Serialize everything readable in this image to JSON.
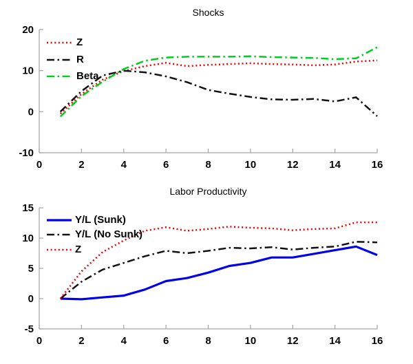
{
  "figure": {
    "background": "#ffffff",
    "axis_color": "#a9a9a9",
    "text_color": "#000000"
  },
  "chart_data": [
    {
      "id": "shocks",
      "type": "line",
      "title": "Shocks",
      "xlabel": "",
      "ylabel": "",
      "xlim": [
        0,
        16
      ],
      "ylim": [
        -10,
        20
      ],
      "xticks": [
        0,
        2,
        4,
        6,
        8,
        10,
        12,
        14,
        16
      ],
      "yticks": [
        -10,
        0,
        10,
        20
      ],
      "grid": false,
      "legend_position": "top-left",
      "x": [
        1,
        2,
        3,
        4,
        5,
        6,
        7,
        8,
        9,
        10,
        11,
        12,
        13,
        14,
        15,
        16
      ],
      "series": [
        {
          "name": "Z",
          "color": "#ee0000",
          "style": "dotted",
          "values": [
            -0.5,
            4.3,
            7.8,
            9.9,
            11.1,
            11.9,
            11.1,
            11.4,
            11.6,
            11.8,
            11.6,
            11.5,
            11.3,
            11.5,
            12.2,
            12.5
          ]
        },
        {
          "name": "R",
          "color": "#111111",
          "style": "dashdot",
          "values": [
            0,
            5.0,
            8.8,
            10.0,
            9.6,
            8.6,
            7.2,
            5.3,
            4.4,
            3.6,
            3.0,
            2.9,
            3.1,
            2.5,
            3.5,
            -1.1
          ]
        },
        {
          "name": "Beta",
          "color": "#00cc22",
          "style": "dashdot",
          "values": [
            -1.2,
            3.8,
            7.3,
            10.4,
            12.4,
            13.2,
            13.4,
            13.4,
            13.4,
            13.5,
            13.3,
            13.2,
            13.1,
            12.8,
            13.0,
            15.7
          ]
        }
      ]
    },
    {
      "id": "labor-productivity",
      "type": "line",
      "title": "Labor Productivity",
      "xlabel": "",
      "ylabel": "",
      "xlim": [
        0,
        16
      ],
      "ylim": [
        -5,
        15
      ],
      "xticks": [
        0,
        2,
        4,
        6,
        8,
        10,
        12,
        14,
        16
      ],
      "yticks": [
        -5,
        0,
        5,
        10,
        15
      ],
      "grid": false,
      "legend_position": "top-left",
      "x": [
        1,
        2,
        3,
        4,
        5,
        6,
        7,
        8,
        9,
        10,
        11,
        12,
        13,
        14,
        15,
        16
      ],
      "series": [
        {
          "name": "Y/L (Sunk)",
          "color": "#0000ee",
          "style": "solid",
          "values": [
            0,
            -0.1,
            0.2,
            0.5,
            1.5,
            2.9,
            3.4,
            4.3,
            5.4,
            5.9,
            6.8,
            6.8,
            7.4,
            8.0,
            8.6,
            7.2
          ]
        },
        {
          "name": "Y/L (No Sunk)",
          "color": "#111111",
          "style": "dashdot",
          "values": [
            0,
            2.8,
            4.8,
            5.9,
            7.0,
            7.9,
            7.5,
            7.9,
            8.4,
            8.3,
            8.5,
            8.1,
            8.4,
            8.6,
            9.4,
            9.3
          ]
        },
        {
          "name": "Z",
          "color": "#ee0000",
          "style": "dotted",
          "values": [
            0,
            4.5,
            7.7,
            9.6,
            11.2,
            11.8,
            11.2,
            11.5,
            11.9,
            11.7,
            11.6,
            11.3,
            11.5,
            11.6,
            12.6,
            12.6
          ]
        }
      ]
    }
  ]
}
